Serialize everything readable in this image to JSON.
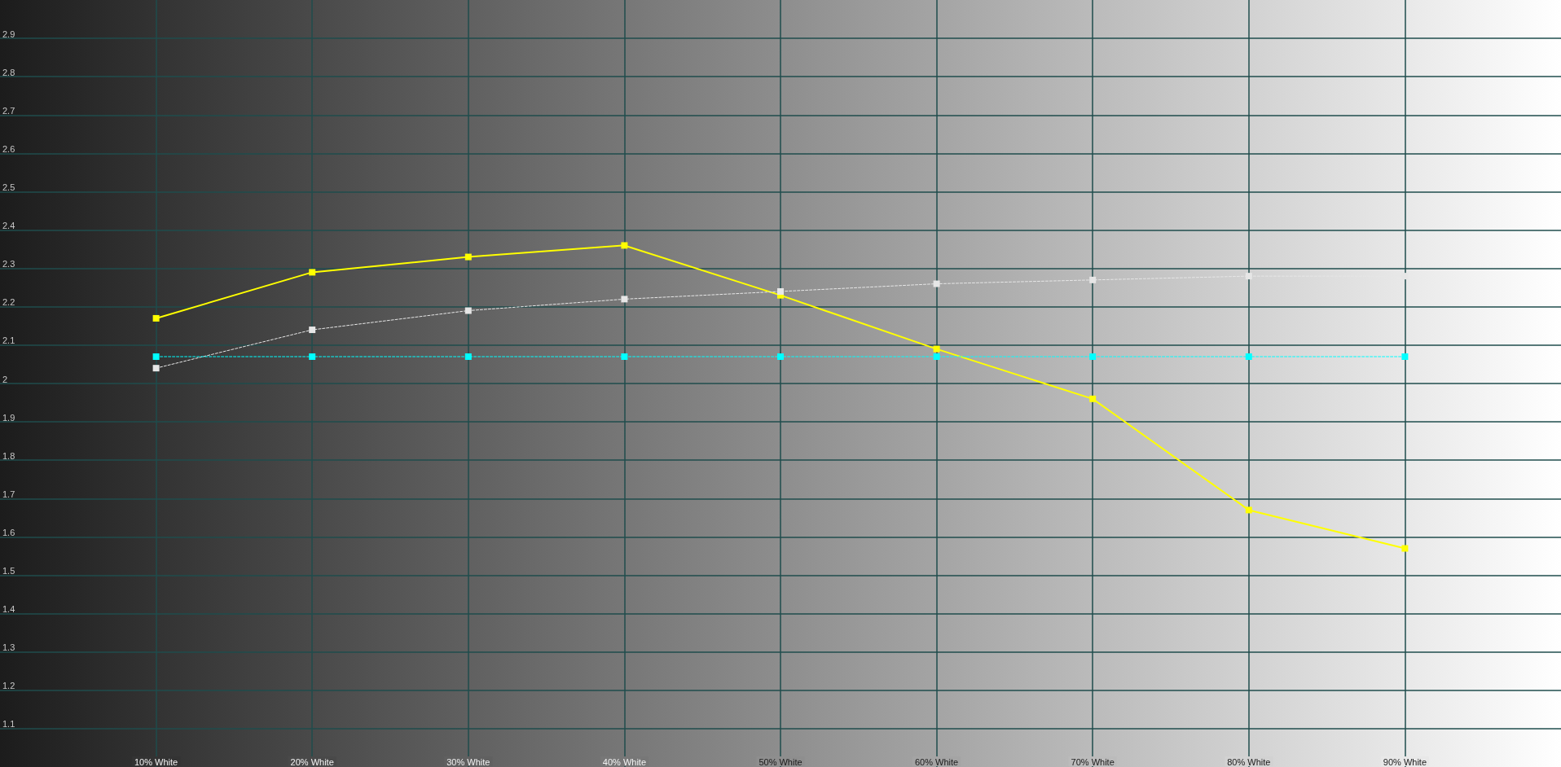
{
  "chart_data": {
    "type": "line",
    "x": [
      10,
      20,
      30,
      40,
      50,
      60,
      70,
      80,
      90
    ],
    "xlim": [
      0,
      100
    ],
    "xticks": [
      {
        "value": 10,
        "label": "10% White"
      },
      {
        "value": 20,
        "label": "20% White"
      },
      {
        "value": 30,
        "label": "30% White"
      },
      {
        "value": 40,
        "label": "40% White"
      },
      {
        "value": 50,
        "label": "50% White"
      },
      {
        "value": 60,
        "label": "60% White"
      },
      {
        "value": 70,
        "label": "70% White"
      },
      {
        "value": 80,
        "label": "80% White"
      },
      {
        "value": 90,
        "label": "90% White"
      }
    ],
    "ylim": [
      1,
      3
    ],
    "yticks": [
      1.1,
      1.2,
      1.3,
      1.4,
      1.5,
      1.6,
      1.7,
      1.8,
      1.9,
      2,
      2.1,
      2.2,
      2.3,
      2.4,
      2.5,
      2.6,
      2.7,
      2.8,
      2.9
    ],
    "grid": true,
    "marker": "square",
    "series": [
      {
        "color": "#ffff00",
        "line_style": "solid",
        "values": [
          2.17,
          2.29,
          2.33,
          2.36,
          2.23,
          2.09,
          1.96,
          1.67,
          1.57
        ]
      },
      {
        "color": "#e6e6e6",
        "line_style": "dashed",
        "values": [
          2.04,
          2.14,
          2.19,
          2.22,
          2.24,
          2.26,
          2.27,
          2.28,
          2.28
        ]
      },
      {
        "color": "#00ffff",
        "line_style": "dashed",
        "values": [
          2.07,
          2.07,
          2.07,
          2.07,
          2.07,
          2.07,
          2.07,
          2.07,
          2.07
        ]
      }
    ]
  }
}
